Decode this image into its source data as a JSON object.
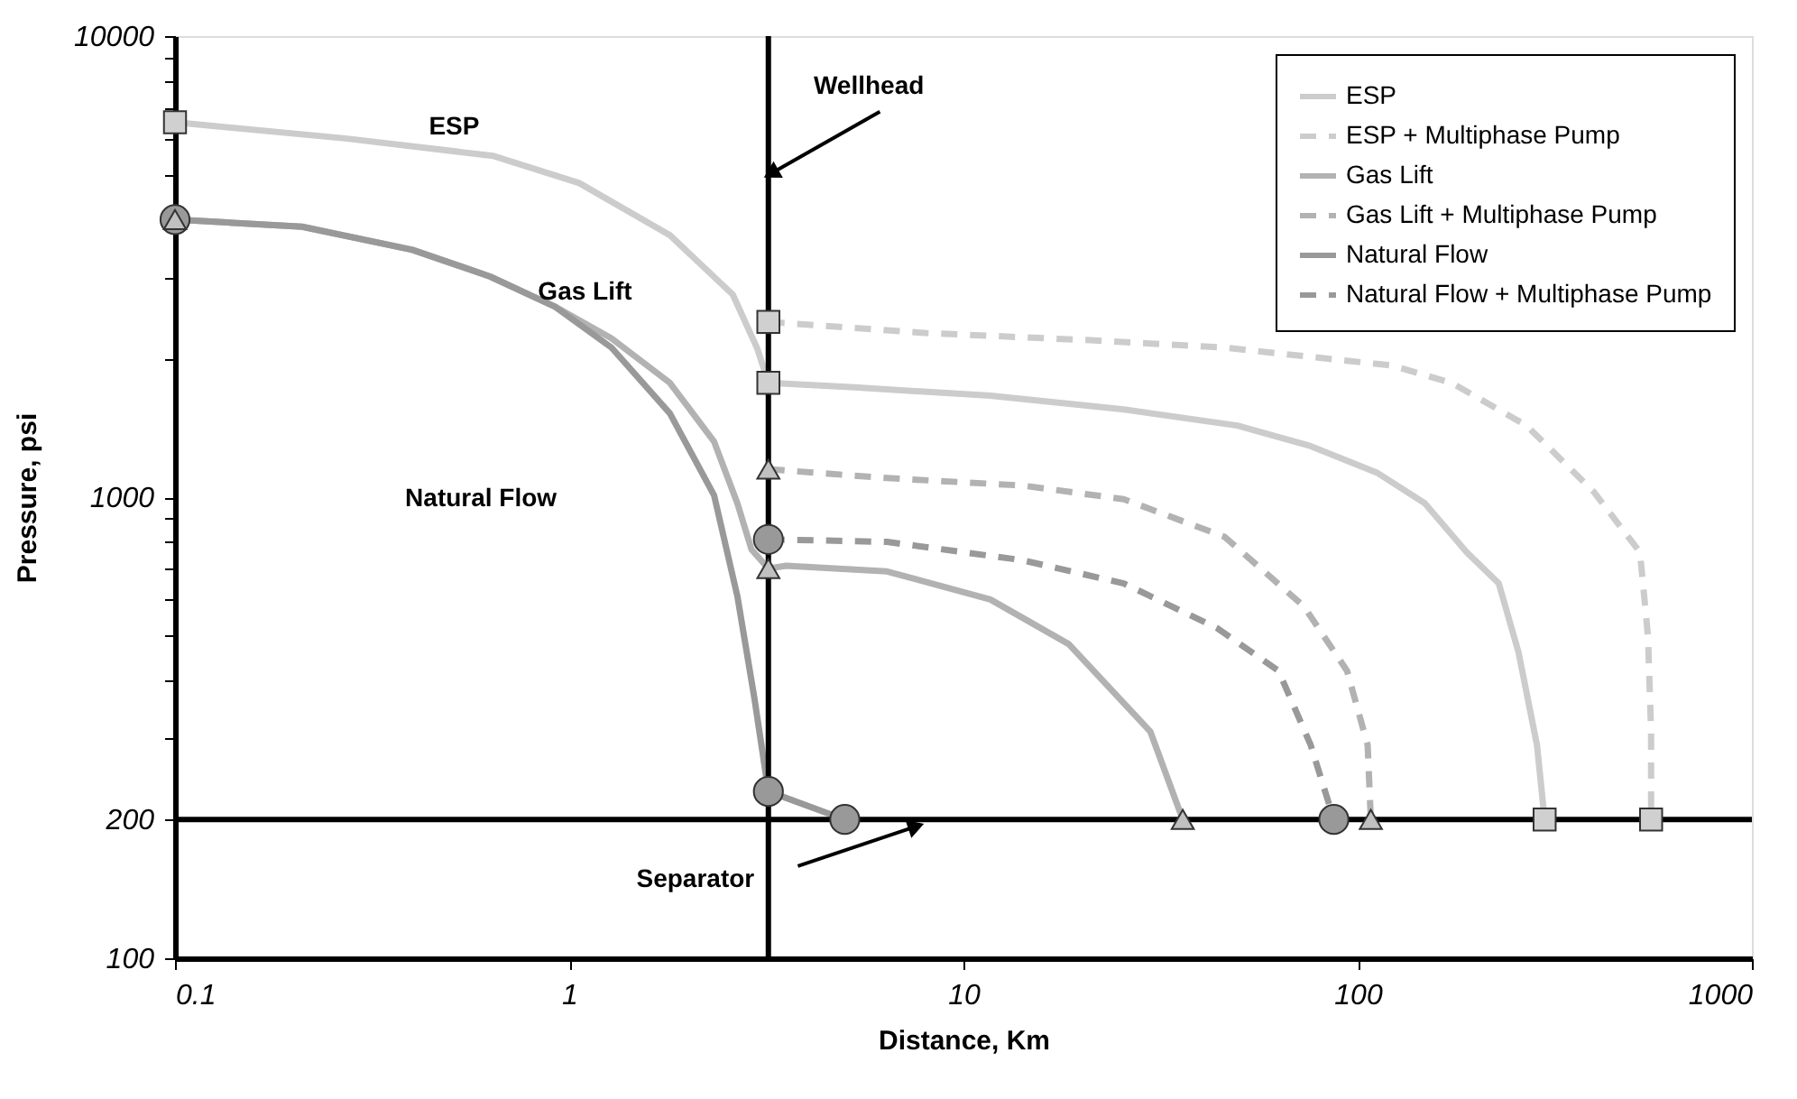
{
  "chart_data": {
    "type": "line",
    "xlabel": "Distance, Km",
    "ylabel": "Pressure, psi",
    "log": "xy",
    "grid": false,
    "legend": "top right",
    "xlim": [
      0.1,
      1000
    ],
    "ylim": [
      100,
      10000
    ],
    "xticks": [
      0.1,
      1,
      10,
      100,
      1000
    ],
    "yticks": [
      100,
      200,
      {
        "value": 300,
        "label": null
      },
      {
        "value": 400,
        "label": null
      },
      {
        "value": 500,
        "label": null
      },
      {
        "value": 600,
        "label": null
      },
      {
        "value": 700,
        "label": null
      },
      {
        "value": 800,
        "label": null
      },
      {
        "value": 900,
        "label": null
      },
      1000,
      {
        "value": 2000,
        "label": null
      },
      {
        "value": 3000,
        "label": null
      },
      {
        "value": 4000,
        "label": null
      },
      {
        "value": 5000,
        "label": null
      },
      {
        "value": 6000,
        "label": null
      },
      {
        "value": 7000,
        "label": null
      },
      {
        "value": 8000,
        "label": null
      },
      {
        "value": 9000,
        "label": null
      },
      10000
    ],
    "ref_lines": [
      {
        "axis": "x",
        "value": 3.2,
        "label": "Wellhead",
        "color": "#000000"
      },
      {
        "axis": "y",
        "value": 200,
        "label": "Separator",
        "color": "#000000"
      }
    ],
    "annotations": [
      "ESP",
      "Gas Lift",
      "Natural Flow"
    ],
    "series": [
      {
        "name": "ESP",
        "color": "#cccccc",
        "line_style": "solid",
        "x": [
          0.1,
          0.27,
          0.64,
          1.06,
          1.8,
          2.6,
          3.0,
          3.2,
          5.3,
          11.7,
          25.5,
          49.5,
          76,
          112,
          148,
          189,
          228,
          256,
          285,
          298
        ],
        "values": [
          6500,
          6000,
          5500,
          4800,
          3700,
          2750,
          2100,
          1770,
          1730,
          1660,
          1550,
          1430,
          1290,
          1130,
          970,
          760,
          650,
          460,
          290,
          200
        ]
      },
      {
        "name": "ESP + Multiphase Pump",
        "color": "#cccccc",
        "line_style": "dashed",
        "x": [
          3.2,
          8,
          21,
          46,
          122,
          173,
          268,
          396,
          520,
          545,
          555,
          555
        ],
        "values": [
          2400,
          2270,
          2190,
          2110,
          1930,
          1770,
          1430,
          1030,
          760,
          500,
          310,
          200
        ]
      },
      {
        "name": "Gas Lift",
        "color": "#b2b2b2",
        "line_style": "solid",
        "x": [
          0.1,
          0.21,
          0.4,
          0.63,
          0.92,
          1.28,
          1.8,
          2.33,
          2.67,
          2.9,
          3.2,
          3.55,
          6.4,
          11.7,
          18.5,
          29.8,
          36
        ],
        "values": [
          4000,
          3860,
          3440,
          3010,
          2590,
          2210,
          1770,
          1320,
          970,
          770,
          700,
          710,
          690,
          600,
          480,
          310,
          200
        ]
      },
      {
        "name": "Gas Lift + Multiphase Pump",
        "color": "#b2b2b2",
        "line_style": "dashed",
        "x": [
          3.2,
          6.4,
          14.1,
          25.5,
          46,
          73,
          94,
          106,
          108
        ],
        "values": [
          1150,
          1100,
          1060,
          990,
          820,
          580,
          420,
          290,
          200
        ]
      },
      {
        "name": "Natural Flow",
        "color": "#999999",
        "line_style": "solid",
        "x": [
          0.1,
          0.21,
          0.4,
          0.63,
          0.92,
          1.28,
          1.8,
          2.33,
          2.67,
          2.95,
          3.2,
          5
        ],
        "values": [
          4000,
          3860,
          3440,
          3010,
          2590,
          2110,
          1520,
          1010,
          610,
          366,
          230,
          200
        ]
      },
      {
        "name": "Natural Flow + Multiphase Pump",
        "color": "#999999",
        "line_style": "dashed",
        "x": [
          3.2,
          6.4,
          14.1,
          25.5,
          44,
          63,
          76,
          87
        ],
        "values": [
          810,
          800,
          730,
          650,
          520,
          420,
          290,
          200
        ]
      },
      {
        "type": "scatter",
        "color": "#d0d0d0",
        "marker": "square",
        "x": [
          0.1,
          3.2,
          298,
          3.2,
          555
        ],
        "values": [
          6500,
          1770,
          200,
          2400,
          200
        ]
      },
      {
        "type": "scatter",
        "color": "#999999",
        "marker": "circle",
        "x": [
          0.1,
          3.2,
          5,
          3.2,
          87
        ],
        "values": [
          4000,
          230,
          200,
          810,
          200
        ]
      },
      {
        "type": "scatter",
        "color": "#c0c0c0",
        "marker": "triangle",
        "x": [
          0.1,
          3.2,
          36,
          3.2,
          108
        ],
        "values": [
          4000,
          700,
          200,
          1150,
          200
        ]
      }
    ]
  }
}
